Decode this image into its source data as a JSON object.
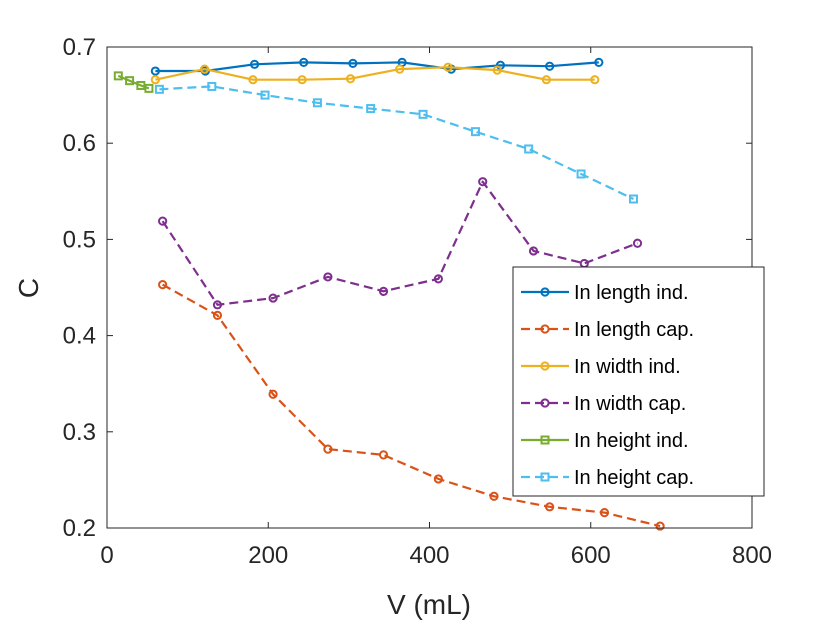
{
  "chart_data": {
    "type": "line",
    "title": "",
    "xlabel": "V (mL)",
    "ylabel": "C",
    "xlim": [
      0,
      800
    ],
    "ylim": [
      0.2,
      0.7
    ],
    "xticks": [
      0,
      200,
      400,
      600,
      800
    ],
    "xtick_labels": [
      "0",
      "200",
      "400",
      "600",
      "800"
    ],
    "yticks": [
      0.2,
      0.3,
      0.4,
      0.5,
      0.6,
      0.7
    ],
    "ytick_labels": [
      "0.2",
      "0.3",
      "0.4",
      "0.5",
      "0.6",
      "0.7"
    ],
    "grid": false,
    "legend_position": "lower-right",
    "series": [
      {
        "name": "In length ind.",
        "color": "#0072BD",
        "line": "solid",
        "marker": "circle",
        "x": [
          60,
          122,
          183,
          244,
          305,
          366,
          427,
          488,
          549,
          610
        ],
        "y": [
          0.675,
          0.675,
          0.682,
          0.684,
          0.683,
          0.684,
          0.677,
          0.681,
          0.68,
          0.684
        ]
      },
      {
        "name": "In length cap.",
        "color": "#D95319",
        "line": "dashed",
        "marker": "circle",
        "x": [
          69,
          137,
          206,
          274,
          343,
          411,
          480,
          549,
          617,
          686
        ],
        "y": [
          0.453,
          0.421,
          0.339,
          0.282,
          0.276,
          0.251,
          0.233,
          0.222,
          0.216,
          0.202
        ]
      },
      {
        "name": "In width ind.",
        "color": "#EDB120",
        "line": "solid",
        "marker": "circle",
        "x": [
          60,
          121,
          181,
          242,
          302,
          363,
          423,
          484,
          545,
          605
        ],
        "y": [
          0.666,
          0.677,
          0.666,
          0.666,
          0.667,
          0.677,
          0.679,
          0.676,
          0.666,
          0.666
        ]
      },
      {
        "name": "In width cap.",
        "color": "#7E2F8E",
        "line": "dashed",
        "marker": "circle",
        "x": [
          69,
          137,
          206,
          274,
          343,
          411,
          466,
          529,
          592,
          658
        ],
        "y": [
          0.519,
          0.432,
          0.439,
          0.461,
          0.446,
          0.459,
          0.56,
          0.488,
          0.475,
          0.496
        ]
      },
      {
        "name": "In height ind.",
        "color": "#77AC30",
        "line": "solid",
        "marker": "square",
        "x": [
          14,
          28,
          42,
          52
        ],
        "y": [
          0.67,
          0.665,
          0.66,
          0.657
        ]
      },
      {
        "name": "In height cap.",
        "color": "#4DBEEE",
        "line": "dashed",
        "marker": "square",
        "x": [
          65,
          130,
          196,
          261,
          327,
          392,
          457,
          523,
          588,
          653
        ],
        "y": [
          0.656,
          0.659,
          0.65,
          0.642,
          0.636,
          0.63,
          0.612,
          0.594,
          0.568,
          0.542
        ]
      }
    ]
  }
}
